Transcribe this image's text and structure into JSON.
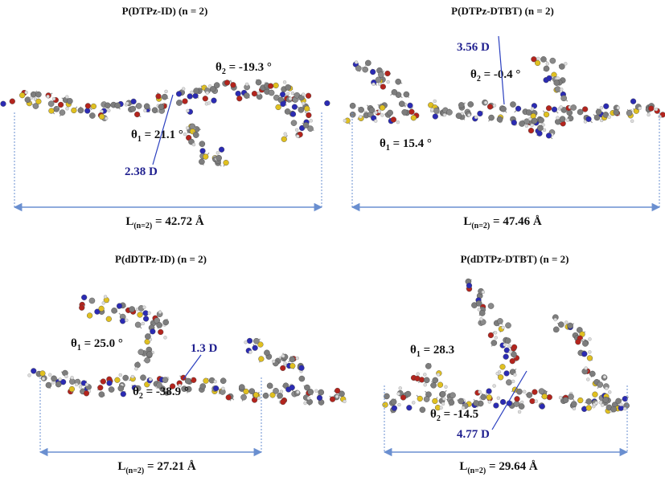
{
  "panels": [
    {
      "title": "P(DTPz-ID) (n = 2)",
      "theta1": {
        "symbol": "θ",
        "subscript": "1",
        "value": " = 21.1 °"
      },
      "theta2": {
        "symbol": "θ",
        "subscript": "2",
        "value": " = -19.3 °"
      },
      "dipole": "2.38 D",
      "length": {
        "symbol": "L",
        "subscript": "(n=2)",
        "value": " = 42.72 Å"
      }
    },
    {
      "title": "P(DTPz-DTBT) (n = 2)",
      "theta1": {
        "symbol": "θ",
        "subscript": "1",
        "value": " = 15.4 °"
      },
      "theta2": {
        "symbol": "θ",
        "subscript": "2",
        "value": " = -0.4 °"
      },
      "dipole": "3.56 D",
      "length": {
        "symbol": "L",
        "subscript": "(n=2)",
        "value": " = 47.46 Å"
      }
    },
    {
      "title": "P(dDTPz-ID) (n = 2)",
      "theta1": {
        "symbol": "θ",
        "subscript": "1",
        "value": " = 25.0 °"
      },
      "theta2": {
        "symbol": "θ",
        "subscript": "2",
        "value": " = -38.9 °"
      },
      "dipole": "1.3 D",
      "length": {
        "symbol": "L",
        "subscript": "(n=2)",
        "value": " = 27.21 Å"
      }
    },
    {
      "title": "P(dDTPz-DTBT) (n = 2)",
      "theta1": {
        "symbol": "θ",
        "subscript": "1",
        "value": " = 28.3"
      },
      "theta2": {
        "symbol": "θ",
        "subscript": "2",
        "value": " = -14.5"
      },
      "dipole": "4.77 D",
      "length": {
        "symbol": "L",
        "subscript": "(n=2)",
        "value": " = 29.64 Å"
      }
    }
  ]
}
